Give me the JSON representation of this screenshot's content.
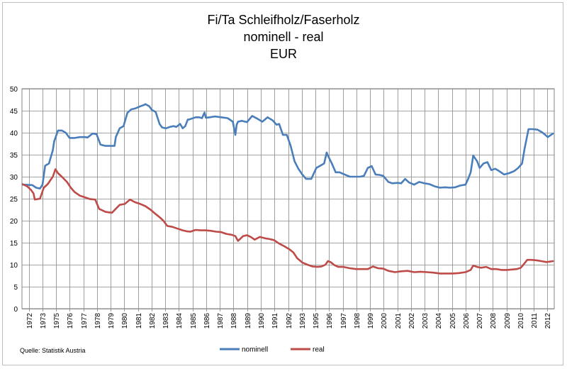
{
  "chart_data": {
    "type": "line",
    "title_lines": [
      "Fi/Ta Schleifholz/Faserholz",
      "nominell - real",
      "EUR"
    ],
    "source": "Quelle: Statistik Austria",
    "ylim": [
      0,
      50
    ],
    "yticks": [
      0,
      5,
      10,
      15,
      20,
      25,
      30,
      35,
      40,
      45,
      50
    ],
    "xlim": [
      1971.5,
      2012.9
    ],
    "xticks": [
      "1972",
      "1973",
      "1975",
      "1976",
      "1977",
      "1978",
      "1979",
      "1980",
      "1981",
      "1982",
      "1983",
      "1984",
      "1985",
      "1986",
      "1987",
      "1988",
      "1989",
      "1990",
      "1991",
      "1992",
      "1993",
      "1995",
      "1996",
      "1997",
      "1998",
      "1999",
      "2000",
      "2001",
      "2002",
      "2003",
      "2004",
      "2005",
      "2006",
      "2007",
      "2008",
      "2009",
      "2010",
      "2011",
      "2012"
    ],
    "grid": true,
    "legend": "bottom",
    "series": [
      {
        "name": "nominell",
        "color": "#4a7ebb",
        "x": [
          1971.55,
          1972.3,
          1972.6,
          1972.9,
          1973.1,
          1973.3,
          1973.6,
          1973.9,
          1974.0,
          1974.3,
          1974.6,
          1974.9,
          1975.2,
          1975.6,
          1976.0,
          1976.4,
          1976.6,
          1976.9,
          1977.0,
          1977.3,
          1977.6,
          1978.0,
          1978.4,
          1978.7,
          1978.8,
          1979.1,
          1979.4,
          1979.7,
          1980.0,
          1980.3,
          1980.7,
          1981.0,
          1981.1,
          1981.4,
          1981.6,
          1981.9,
          1982.2,
          1982.4,
          1982.7,
          1983.0,
          1983.3,
          1983.5,
          1983.8,
          1984.0,
          1984.2,
          1984.4,
          1984.5,
          1984.7,
          1985.0,
          1985.3,
          1985.5,
          1985.7,
          1985.8,
          1986.1,
          1986.5,
          1987.0,
          1987.5,
          1987.9,
          1988.1,
          1988.2,
          1988.3,
          1988.6,
          1989.0,
          1989.4,
          1989.8,
          1990.2,
          1990.6,
          1991.0,
          1991.3,
          1991.5,
          1991.8,
          1992.1,
          1992.4,
          1992.7,
          1993.0,
          1993.3,
          1993.6,
          1994.0,
          1994.4,
          1994.7,
          1995.0,
          1995.2,
          1995.3,
          1995.6,
          1995.9,
          1996.2,
          1996.6,
          1997.0,
          1997.4,
          1997.8,
          1998.1,
          1998.4,
          1998.7,
          1999.0,
          1999.3,
          1999.6,
          2000.0,
          2000.3,
          2000.7,
          2001.0,
          2001.3,
          2001.6,
          2002.0,
          2002.4,
          2002.8,
          2003.2,
          2003.6,
          2004.0,
          2004.4,
          2004.8,
          2005.2,
          2005.6,
          2006.0,
          2006.2,
          2006.4,
          2006.6,
          2006.9,
          2007.1,
          2007.4,
          2007.7,
          2008.0,
          2008.3,
          2008.6,
          2009.0,
          2009.4,
          2009.8,
          2010.1,
          2010.4,
          2010.6,
          2010.9,
          2011.2,
          2011.6,
          2012.0,
          2012.4,
          2012.8
        ],
        "values": [
          28.2,
          28.1,
          27.5,
          27.3,
          28.2,
          32.5,
          33.0,
          36.0,
          38.0,
          40.5,
          40.5,
          40.0,
          38.8,
          38.8,
          39.0,
          39.0,
          38.9,
          39.6,
          39.8,
          39.7,
          37.3,
          37.0,
          37.0,
          37.0,
          39.0,
          41.0,
          41.5,
          44.5,
          45.3,
          45.5,
          46.0,
          46.3,
          46.5,
          46.0,
          45.2,
          44.7,
          42.0,
          41.2,
          41.0,
          41.3,
          41.5,
          41.3,
          42.0,
          41.0,
          41.5,
          43.0,
          43.0,
          43.2,
          43.5,
          43.5,
          43.3,
          44.6,
          43.4,
          43.5,
          43.7,
          43.5,
          43.3,
          42.5,
          39.5,
          41.8,
          42.5,
          42.7,
          42.4,
          43.8,
          43.2,
          42.5,
          43.5,
          42.8,
          41.8,
          42.0,
          39.5,
          39.5,
          37.0,
          33.5,
          31.8,
          30.5,
          29.5,
          29.5,
          32.0,
          32.5,
          33.0,
          35.5,
          34.8,
          33.0,
          31.0,
          31.0,
          30.5,
          30.0,
          30.0,
          30.0,
          30.2,
          32.0,
          32.4,
          30.5,
          30.4,
          30.2,
          28.8,
          28.5,
          28.6,
          28.5,
          29.5,
          28.7,
          28.2,
          28.8,
          28.5,
          28.3,
          27.8,
          27.5,
          27.6,
          27.5,
          27.6,
          28.0,
          28.2,
          29.5,
          31.0,
          34.8,
          33.5,
          32.0,
          33.0,
          33.3,
          31.5,
          31.8,
          31.3,
          30.5,
          30.8,
          31.3,
          32.0,
          33.0,
          36.5,
          40.8,
          40.8,
          40.7,
          40.0,
          39.0,
          39.8
        ]
      },
      {
        "name": "real",
        "color": "#be4b48",
        "x": [
          1971.55,
          1971.9,
          1972.2,
          1972.4,
          1972.5,
          1972.9,
          1973.2,
          1973.5,
          1973.9,
          1974.1,
          1974.3,
          1974.6,
          1975.0,
          1975.3,
          1975.6,
          1976.0,
          1976.4,
          1976.8,
          1977.2,
          1977.5,
          1978.0,
          1978.5,
          1978.9,
          1979.1,
          1979.5,
          1979.9,
          1980.3,
          1980.7,
          1981.1,
          1981.5,
          1981.9,
          1982.2,
          1982.5,
          1982.8,
          1983.2,
          1983.6,
          1984.0,
          1984.3,
          1984.6,
          1985.0,
          1985.4,
          1985.8,
          1986.2,
          1986.6,
          1987.0,
          1987.4,
          1987.8,
          1988.1,
          1988.3,
          1988.7,
          1989.0,
          1989.3,
          1989.6,
          1990.0,
          1990.4,
          1990.8,
          1991.1,
          1991.5,
          1991.9,
          1992.3,
          1992.6,
          1992.9,
          1993.3,
          1993.7,
          1994.1,
          1994.5,
          1994.8,
          1995.1,
          1995.3,
          1995.5,
          1995.8,
          1996.1,
          1996.5,
          1997.0,
          1997.5,
          1998.0,
          1998.4,
          1998.8,
          1999.2,
          1999.6,
          2000.0,
          2000.5,
          2001.0,
          2001.5,
          2002.0,
          2002.5,
          2003.0,
          2003.5,
          2004.0,
          2004.5,
          2005.0,
          2005.5,
          2006.0,
          2006.4,
          2006.6,
          2006.9,
          2007.2,
          2007.6,
          2008.0,
          2008.4,
          2008.8,
          2009.2,
          2009.6,
          2010.0,
          2010.3,
          2010.5,
          2010.8,
          2011.1,
          2011.5,
          2011.9,
          2012.3,
          2012.8
        ],
        "values": [
          28.3,
          27.8,
          27.0,
          26.2,
          24.8,
          25.0,
          27.5,
          28.3,
          30.0,
          31.7,
          30.8,
          30.0,
          28.8,
          27.5,
          26.5,
          25.7,
          25.3,
          24.9,
          24.8,
          22.7,
          22.0,
          21.8,
          23.0,
          23.6,
          23.8,
          24.8,
          24.2,
          23.8,
          23.3,
          22.5,
          21.5,
          20.8,
          20.0,
          18.8,
          18.6,
          18.2,
          17.8,
          17.6,
          17.5,
          17.9,
          17.8,
          17.8,
          17.7,
          17.5,
          17.4,
          17.0,
          16.8,
          16.5,
          15.4,
          16.5,
          16.7,
          16.3,
          15.7,
          16.3,
          16.0,
          15.8,
          15.6,
          14.8,
          14.2,
          13.5,
          12.8,
          11.5,
          10.5,
          10.0,
          9.6,
          9.5,
          9.6,
          10.0,
          10.8,
          10.6,
          9.9,
          9.5,
          9.5,
          9.2,
          9.0,
          9.0,
          9.0,
          9.6,
          9.2,
          9.1,
          8.6,
          8.3,
          8.5,
          8.6,
          8.3,
          8.4,
          8.3,
          8.2,
          8.0,
          8.0,
          8.0,
          8.1,
          8.3,
          8.8,
          9.8,
          9.5,
          9.3,
          9.5,
          9.0,
          9.0,
          8.8,
          8.8,
          8.9,
          9.0,
          9.3,
          10.0,
          11.1,
          11.1,
          11.0,
          10.8,
          10.6,
          10.8
        ]
      }
    ]
  }
}
